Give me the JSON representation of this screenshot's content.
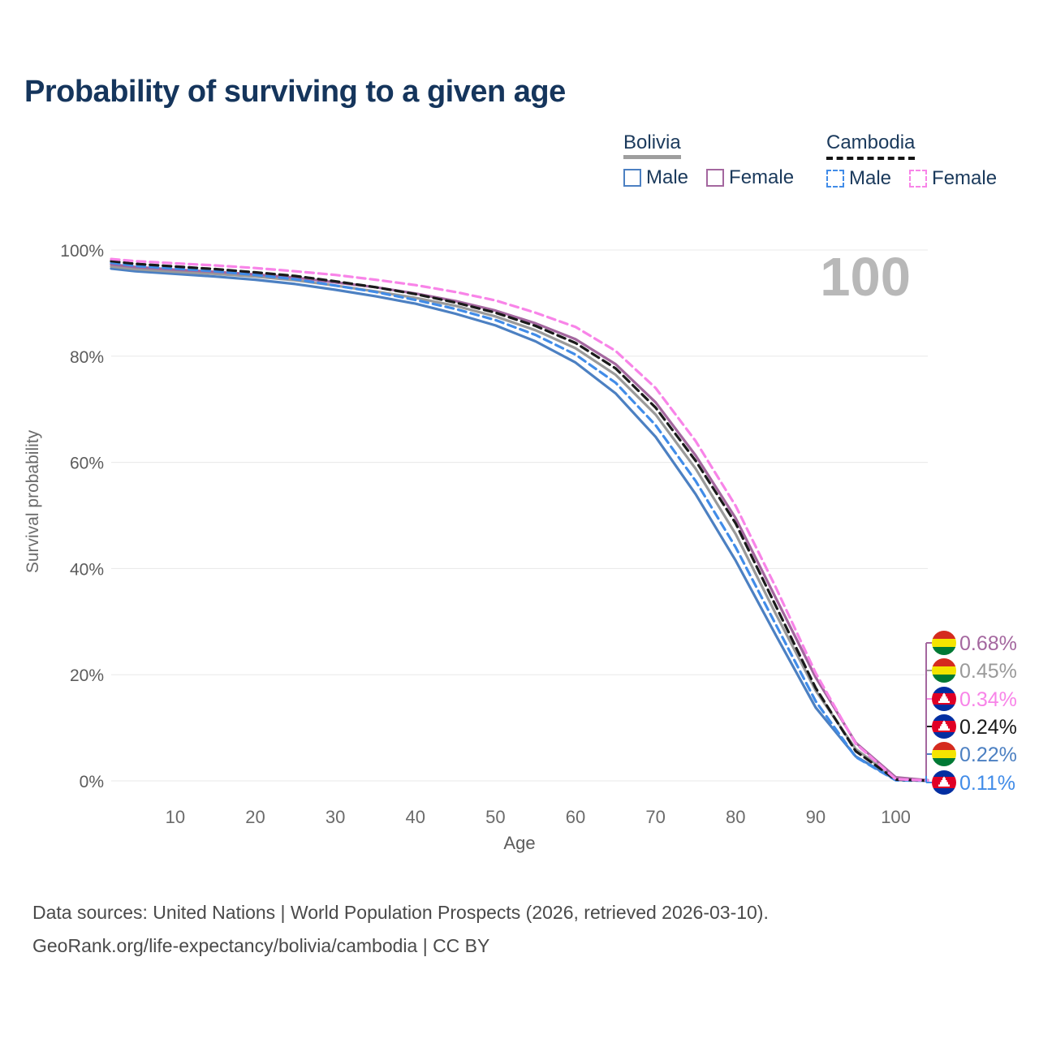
{
  "title": "Probability of surviving to a given age",
  "legend": {
    "groups": [
      {
        "label": "Bolivia",
        "line_style": "solid",
        "underline_color": "#9e9e9e",
        "items": [
          {
            "label": "Male",
            "color": "#4c80c2",
            "dashed": false
          },
          {
            "label": "Female",
            "color": "#a4679f",
            "dashed": false
          }
        ]
      },
      {
        "label": "Cambodia",
        "line_style": "dashed",
        "underline_color": "#141414",
        "items": [
          {
            "label": "Male",
            "color": "#418ce8",
            "dashed": true
          },
          {
            "label": "Female",
            "color": "#f884e8",
            "dashed": true
          }
        ]
      }
    ]
  },
  "chart_data": {
    "type": "line",
    "title": "Probability of surviving to a given age",
    "xlabel": "Age",
    "ylabel": "Survival probability",
    "x_ticks": [
      10,
      20,
      30,
      40,
      50,
      60,
      70,
      80,
      90,
      100
    ],
    "y_ticks": [
      "0%",
      "20%",
      "40%",
      "60%",
      "80%",
      "100%"
    ],
    "xlim": [
      2,
      104
    ],
    "ylim": [
      0,
      100
    ],
    "grid": true,
    "hover_age_watermark": "100",
    "ages": [
      2,
      5,
      10,
      15,
      20,
      25,
      30,
      35,
      40,
      45,
      50,
      55,
      60,
      65,
      70,
      75,
      80,
      85,
      90,
      95,
      100,
      104
    ],
    "series": [
      {
        "name": "Bolivia Male",
        "country": "Bolivia",
        "sex": "male",
        "color": "#4c80c2",
        "dashed": false,
        "values": [
          96.5,
          96.0,
          95.5,
          95.0,
          94.4,
          93.6,
          92.5,
          91.3,
          89.9,
          88.0,
          85.8,
          82.8,
          78.8,
          73.0,
          64.8,
          54.0,
          41.5,
          27.5,
          13.8,
          4.6,
          0.22,
          0.04
        ]
      },
      {
        "name": "Bolivia",
        "country": "Bolivia",
        "sex": "both",
        "color": "#9a9a9a",
        "dashed": false,
        "values": [
          96.9,
          96.4,
          95.9,
          95.5,
          95.0,
          94.3,
          93.3,
          92.2,
          91.0,
          89.5,
          87.5,
          84.9,
          81.5,
          76.5,
          69.0,
          58.8,
          46.5,
          31.5,
          17.0,
          6.0,
          0.45,
          0.08
        ]
      },
      {
        "name": "Bolivia Female",
        "country": "Bolivia",
        "sex": "female",
        "color": "#a4679f",
        "dashed": false,
        "values": [
          97.3,
          96.8,
          96.3,
          95.9,
          95.4,
          94.8,
          93.9,
          93.0,
          91.8,
          90.4,
          88.6,
          86.2,
          83.2,
          78.5,
          71.3,
          61.3,
          49.5,
          34.5,
          19.5,
          7.2,
          0.68,
          0.12
        ]
      },
      {
        "name": "Cambodia Male",
        "country": "Cambodia",
        "sex": "male",
        "color": "#418ce8",
        "dashed": true,
        "values": [
          97.6,
          97.0,
          96.5,
          96.0,
          95.3,
          94.5,
          93.3,
          92.1,
          90.6,
          88.9,
          86.8,
          84.0,
          80.3,
          75.0,
          67.0,
          56.5,
          44.0,
          29.5,
          15.0,
          4.5,
          0.11,
          0.02
        ]
      },
      {
        "name": "Cambodia",
        "country": "Cambodia",
        "sex": "both",
        "color": "#1a1a1a",
        "dashed": true,
        "values": [
          97.9,
          97.4,
          96.9,
          96.4,
          95.8,
          95.1,
          94.1,
          93.0,
          91.7,
          90.1,
          88.2,
          85.7,
          82.5,
          77.7,
          70.3,
          60.3,
          48.5,
          33.0,
          17.5,
          5.6,
          0.24,
          0.05
        ]
      },
      {
        "name": "Cambodia Female",
        "country": "Cambodia",
        "sex": "female",
        "color": "#f884e8",
        "dashed": true,
        "values": [
          98.3,
          97.9,
          97.5,
          97.1,
          96.6,
          96.0,
          95.3,
          94.4,
          93.4,
          92.1,
          90.5,
          88.2,
          85.5,
          81.0,
          74.0,
          64.0,
          51.8,
          36.5,
          20.3,
          7.0,
          0.34,
          0.06
        ]
      }
    ]
  },
  "end_labels": [
    {
      "value": "0.68%",
      "series": "Bolivia Female",
      "flag": "bolivia",
      "color": "#a4679f"
    },
    {
      "value": "0.45%",
      "series": "Bolivia",
      "flag": "bolivia",
      "color": "#9a9a9a"
    },
    {
      "value": "0.34%",
      "series": "Cambodia Female",
      "flag": "cambodia",
      "color": "#f884e8"
    },
    {
      "value": "0.24%",
      "series": "Cambodia",
      "flag": "cambodia",
      "color": "#1a1a1a"
    },
    {
      "value": "0.22%",
      "series": "Bolivia Male",
      "flag": "bolivia",
      "color": "#4c80c2"
    },
    {
      "value": "0.11%",
      "series": "Cambodia Male",
      "flag": "cambodia",
      "color": "#418ce8"
    }
  ],
  "flag_colors": {
    "bolivia": {
      "red": "#d52b1e",
      "yellow": "#f4e400",
      "green": "#007934"
    },
    "cambodia": {
      "blue": "#032ea1",
      "red": "#e00025",
      "temple": "#ffffff"
    }
  },
  "footer": {
    "line1": "Data sources: United Nations | World Population Prospects (2026, retrieved 2026-03-10).",
    "line2": "GeoRank.org/life-expectancy/bolivia/cambodia | CC BY"
  }
}
